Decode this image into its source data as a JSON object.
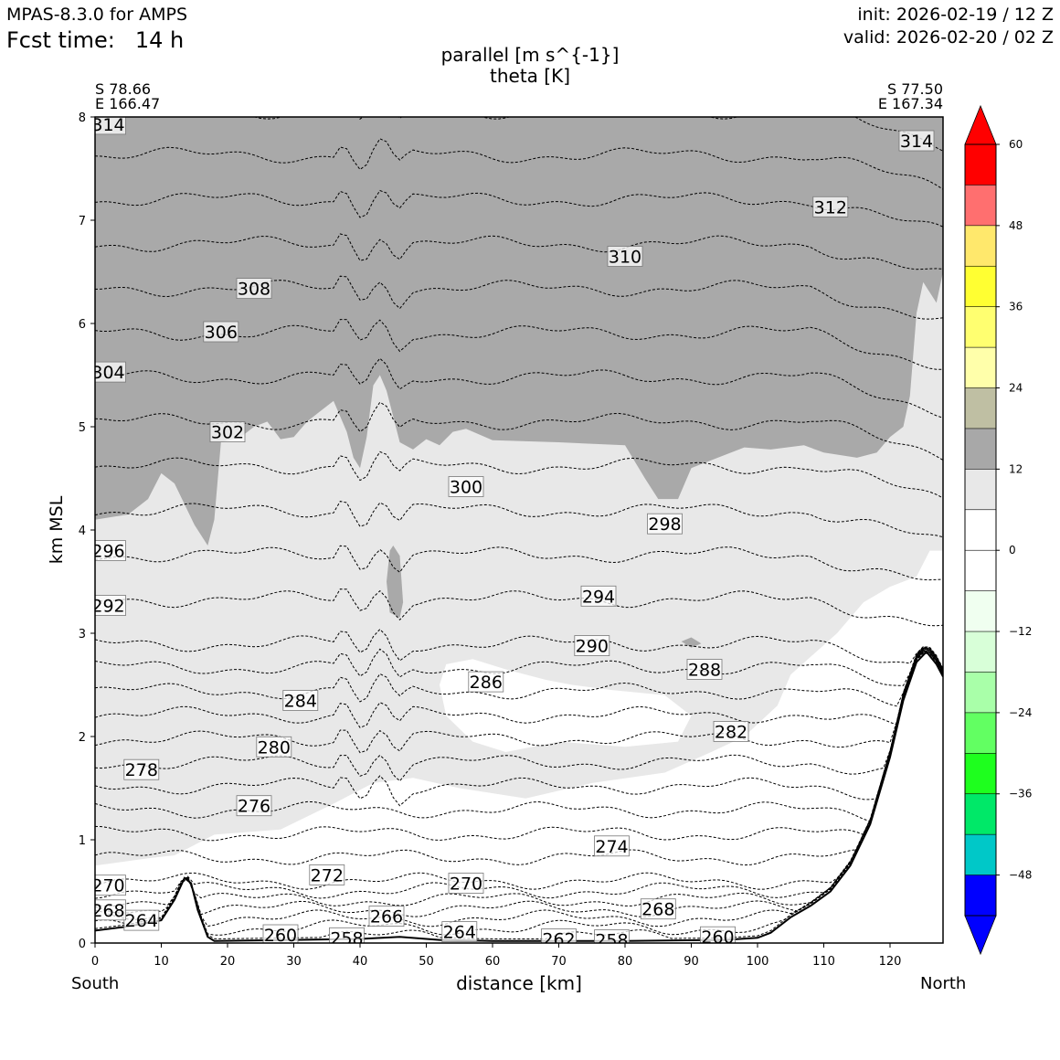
{
  "header": {
    "model_title": "MPAS-8.3.0 for AMPS",
    "fcst_label": "Fcst time:",
    "fcst_value": "14 h",
    "init": "init: 2026-02-19 / 12 Z",
    "valid": "valid: 2026-02-20 / 02 Z"
  },
  "chart_title": {
    "line1": "parallel [m s^{-1}]",
    "line2": "theta [K]"
  },
  "endpoints": {
    "left": {
      "lat": "S 78.66",
      "lon": "E 166.47"
    },
    "right": {
      "lat": "S 77.50",
      "lon": "E 167.34"
    },
    "left_dir": "South",
    "right_dir": "North"
  },
  "chart_data": {
    "type": "cross-section",
    "title": "parallel [m s^{-1}] / theta [K]",
    "xlabel": "distance [km]",
    "ylabel": "km MSL",
    "xlim": [
      0,
      128
    ],
    "ylim": [
      0,
      8
    ],
    "xticks": [
      "0",
      "10",
      "20",
      "30",
      "40",
      "50",
      "60",
      "70",
      "80",
      "90",
      "100",
      "110",
      "120"
    ],
    "yticks": [
      "0",
      "1",
      "2",
      "3",
      "4",
      "5",
      "6",
      "7",
      "8"
    ],
    "terrain": [
      [
        0,
        0.12
      ],
      [
        5,
        0.16
      ],
      [
        10,
        0.22
      ],
      [
        12,
        0.42
      ],
      [
        13.5,
        0.63
      ],
      [
        14.5,
        0.58
      ],
      [
        15.5,
        0.32
      ],
      [
        17,
        0.06
      ],
      [
        18,
        0.02
      ],
      [
        30,
        0.03
      ],
      [
        40,
        0.04
      ],
      [
        46,
        0.06
      ],
      [
        52,
        0.03
      ],
      [
        60,
        0.02
      ],
      [
        80,
        0.02
      ],
      [
        95,
        0.03
      ],
      [
        100,
        0.05
      ],
      [
        102,
        0.1
      ],
      [
        105,
        0.25
      ],
      [
        108,
        0.36
      ],
      [
        111,
        0.5
      ],
      [
        114,
        0.75
      ],
      [
        117,
        1.15
      ],
      [
        120,
        1.8
      ],
      [
        122,
        2.35
      ],
      [
        124,
        2.72
      ],
      [
        125.5,
        2.82
      ],
      [
        127,
        2.7
      ],
      [
        128,
        2.58
      ]
    ],
    "theta_levels": [
      {
        "value": "258",
        "x": 38,
        "y": 0.05
      },
      {
        "value": "258",
        "x": 78,
        "y": 0.03
      },
      {
        "value": "260",
        "x": 28,
        "y": 0.08
      },
      {
        "value": "260",
        "x": 94,
        "y": 0.06
      },
      {
        "value": "262",
        "x": 70,
        "y": 0.04
      },
      {
        "value": "264",
        "x": 7,
        "y": 0.22
      },
      {
        "value": "264",
        "x": 55,
        "y": 0.11
      },
      {
        "value": "266",
        "x": 44,
        "y": 0.26
      },
      {
        "value": "268",
        "x": 2,
        "y": 0.32
      },
      {
        "value": "268",
        "x": 85,
        "y": 0.33
      },
      {
        "value": "270",
        "x": 2,
        "y": 0.56
      },
      {
        "value": "270",
        "x": 56,
        "y": 0.58
      },
      {
        "value": "272",
        "x": 35,
        "y": 0.66
      },
      {
        "value": "274",
        "x": 78,
        "y": 0.94
      },
      {
        "value": "276",
        "x": 24,
        "y": 1.33
      },
      {
        "value": "278",
        "x": 7,
        "y": 1.68
      },
      {
        "value": "280",
        "x": 27,
        "y": 1.9
      },
      {
        "value": "282",
        "x": 96,
        "y": 2.05
      },
      {
        "value": "284",
        "x": 31,
        "y": 2.35
      },
      {
        "value": "286",
        "x": 59,
        "y": 2.53
      },
      {
        "value": "288",
        "x": 92,
        "y": 2.65
      },
      {
        "value": "290",
        "x": 75,
        "y": 2.88
      },
      {
        "value": "292",
        "x": 2,
        "y": 3.27
      },
      {
        "value": "294",
        "x": 76,
        "y": 3.36
      },
      {
        "value": "296",
        "x": 2,
        "y": 3.8
      },
      {
        "value": "298",
        "x": 86,
        "y": 4.06
      },
      {
        "value": "300",
        "x": 56,
        "y": 4.42
      },
      {
        "value": "302",
        "x": 20,
        "y": 4.95
      },
      {
        "value": "304",
        "x": 2,
        "y": 5.53
      },
      {
        "value": "306",
        "x": 19,
        "y": 5.92
      },
      {
        "value": "308",
        "x": 24,
        "y": 6.34
      },
      {
        "value": "310",
        "x": 80,
        "y": 6.65
      },
      {
        "value": "312",
        "x": 111,
        "y": 7.13
      },
      {
        "value": "314",
        "x": 2,
        "y": 7.93
      },
      {
        "value": "314",
        "x": 124,
        "y": 7.77
      }
    ],
    "colorbar": {
      "label_ticks": [
        "60",
        "48",
        "36",
        "24",
        "12",
        "0",
        "−12",
        "−24",
        "−36",
        "−48"
      ],
      "colors_top_to_bottom": [
        "#ff0000",
        "#ff6f6f",
        "#ffe86c",
        "#ffff32",
        "#ffff70",
        "#ffffaa",
        "#bfbfa3",
        "#a8a8a8",
        "#e8e8e8",
        "#ffffff",
        "#ffffff",
        "#f0fff0",
        "#d8ffd8",
        "#a9ffa9",
        "#62ff62",
        "#1eff1e",
        "#00e868",
        "#00c8c8",
        "#0000ff"
      ],
      "over_color": "#ff0000",
      "under_color": "#0000ff"
    },
    "shading": [
      {
        "name": "12-18",
        "color": "#a9a9a9"
      },
      {
        "name": "6-12",
        "color": "#e8e8e8"
      },
      {
        "name": "0-6",
        "color": "#ffffff"
      }
    ]
  }
}
